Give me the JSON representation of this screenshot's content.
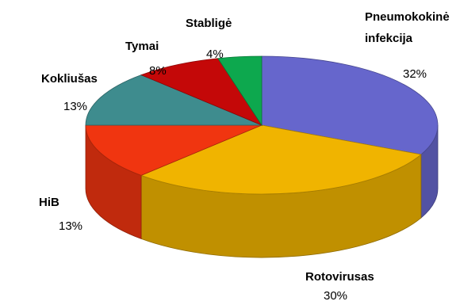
{
  "chart_data": {
    "type": "pie",
    "style": "3d",
    "title": "",
    "categories": [
      "Pneumokokinė infekcija",
      "Rotovirusas",
      "HiB",
      "Kokliušas",
      "Tymai",
      "Stabligė"
    ],
    "values": [
      32,
      30,
      13,
      13,
      8,
      4
    ],
    "value_labels": [
      "32%",
      "30%",
      "13%",
      "13%",
      "8%",
      "4%"
    ],
    "label_lines": [
      [
        "Pneumokokinė",
        "infekcija"
      ],
      [
        "Rotovirusas"
      ],
      [
        "HiB"
      ],
      [
        "Kokliušas"
      ],
      [
        "Tymai"
      ],
      [
        "Stabligė"
      ]
    ],
    "colors": [
      "#6666CC",
      "#F0B400",
      "#F03510",
      "#3E8C8E",
      "#C40808",
      "#0DA84E"
    ],
    "legend": "none"
  }
}
